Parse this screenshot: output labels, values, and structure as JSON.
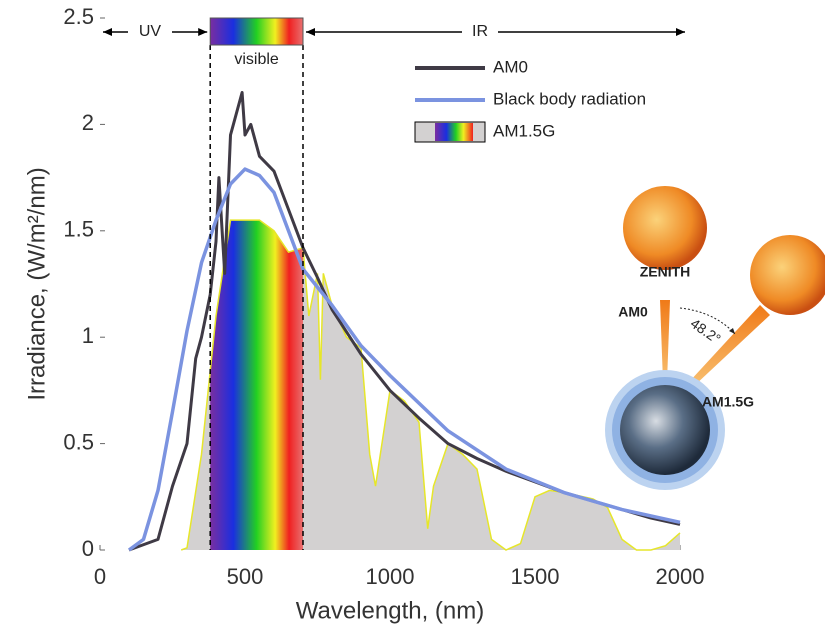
{
  "chart_data": {
    "type": "area_line",
    "x_label": "Wavelength, (nm)",
    "y_label": "Irradiance, (W/m²/nm)",
    "xlim": [
      0,
      2000
    ],
    "xticks": [
      0,
      500,
      1000,
      1500,
      2000
    ],
    "ylim": [
      0,
      2.5
    ],
    "yticks": [
      0,
      0.5,
      1,
      1.5,
      2,
      2.5
    ],
    "visible_range": [
      380,
      700
    ],
    "series": [
      {
        "name": "AM0",
        "color": "#3f3a45",
        "kind": "line",
        "x": [
          100,
          200,
          250,
          300,
          330,
          350,
          380,
          400,
          410,
          430,
          450,
          470,
          490,
          500,
          520,
          550,
          600,
          650,
          700,
          750,
          800,
          900,
          1000,
          1100,
          1200,
          1300,
          1400,
          1500,
          1600,
          1700,
          1800,
          1900,
          2000
        ],
        "values": [
          0,
          0.05,
          0.3,
          0.5,
          0.9,
          1.0,
          1.2,
          1.45,
          1.75,
          1.3,
          1.95,
          2.05,
          2.15,
          1.95,
          2.0,
          1.85,
          1.78,
          1.6,
          1.42,
          1.28,
          1.13,
          0.92,
          0.75,
          0.62,
          0.5,
          0.43,
          0.37,
          0.32,
          0.27,
          0.23,
          0.19,
          0.15,
          0.12
        ]
      },
      {
        "name": "Black body radiation",
        "color": "#7b93e0",
        "kind": "line",
        "x": [
          100,
          150,
          200,
          250,
          300,
          350,
          400,
          450,
          500,
          550,
          600,
          700,
          800,
          900,
          1000,
          1200,
          1400,
          1600,
          1800,
          2000
        ],
        "values": [
          0,
          0.05,
          0.28,
          0.65,
          1.03,
          1.35,
          1.55,
          1.72,
          1.79,
          1.76,
          1.68,
          1.32,
          1.15,
          0.96,
          0.82,
          0.56,
          0.38,
          0.27,
          0.19,
          0.13
        ]
      },
      {
        "name": "AM1.5G",
        "color": "#d3d1d1",
        "edge_color": "#e6e62a",
        "kind": "area",
        "x": [
          280,
          300,
          350,
          400,
          450,
          500,
          550,
          600,
          650,
          700,
          720,
          750,
          760,
          770,
          800,
          850,
          900,
          930,
          950,
          1000,
          1050,
          1100,
          1130,
          1150,
          1200,
          1250,
          1300,
          1350,
          1400,
          1450,
          1500,
          1550,
          1600,
          1700,
          1750,
          1800,
          1850,
          1900,
          1950,
          2000
        ],
        "values": [
          0,
          0.01,
          0.45,
          1.1,
          1.55,
          1.55,
          1.55,
          1.5,
          1.4,
          1.42,
          1.1,
          1.3,
          0.8,
          1.3,
          1.15,
          1.0,
          0.95,
          0.45,
          0.3,
          0.75,
          0.7,
          0.6,
          0.1,
          0.3,
          0.5,
          0.45,
          0.38,
          0.05,
          0,
          0.03,
          0.25,
          0.28,
          0.27,
          0.24,
          0.2,
          0.05,
          0,
          0,
          0.02,
          0.08
        ]
      }
    ],
    "annotations": {
      "uv": "UV",
      "visible": "visible",
      "ir": "IR",
      "zenith": "ZENITH",
      "am0": "AM0",
      "angle": "48.2°",
      "am15g": "AM1.5G"
    }
  }
}
